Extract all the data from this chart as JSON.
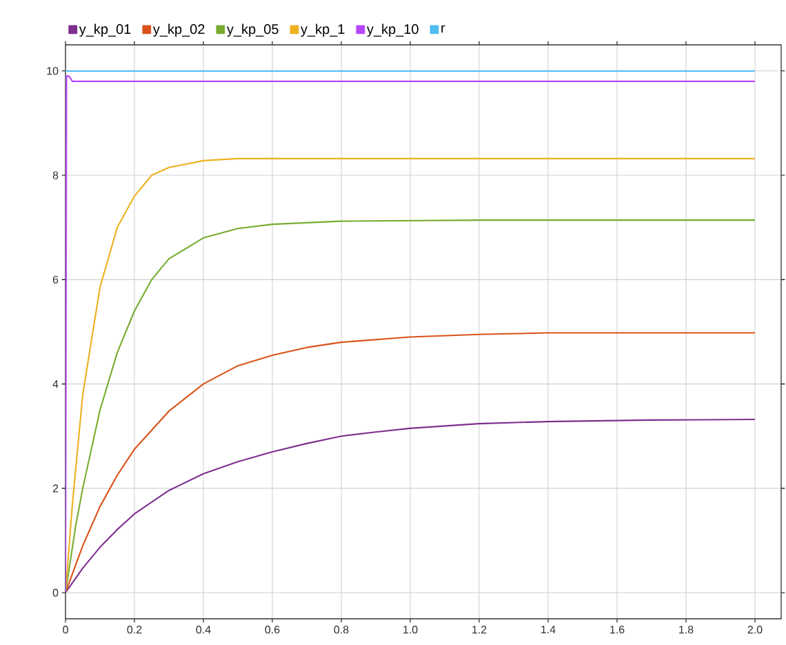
{
  "chart_data": {
    "type": "line",
    "xlim": [
      0,
      2.076
    ],
    "ylim": [
      -0.5,
      10.5
    ],
    "xticks": [
      0,
      0.2,
      0.4,
      0.6,
      0.8,
      {
        "value": 1,
        "label": "1.0"
      },
      1.2,
      1.4,
      1.6,
      1.8,
      {
        "value": 2,
        "label": "2.0"
      }
    ],
    "yticks": [
      0,
      2,
      4,
      6,
      8,
      10
    ],
    "grid": true,
    "legend": "top",
    "marker": "none",
    "line_style": "solid",
    "series": [
      {
        "name": "y_kp_01",
        "color": "#7e2f8e",
        "x": [
          0,
          0.05,
          0.1,
          0.15,
          0.2,
          0.3,
          0.4,
          0.5,
          0.6,
          0.7,
          0.8,
          0.9,
          1.0,
          1.2,
          1.4,
          1.7,
          2.0
        ],
        "values": [
          0,
          0.47,
          0.87,
          1.21,
          1.51,
          1.96,
          2.28,
          2.51,
          2.7,
          2.86,
          3.0,
          3.08,
          3.15,
          3.24,
          3.28,
          3.31,
          3.32
        ]
      },
      {
        "name": "y_kp_02",
        "color": "#d95319",
        "x": [
          0,
          0.05,
          0.1,
          0.15,
          0.2,
          0.3,
          0.4,
          0.5,
          0.6,
          0.7,
          0.8,
          1.0,
          1.2,
          1.4,
          2.0
        ],
        "values": [
          0,
          0.9,
          1.65,
          2.25,
          2.75,
          3.48,
          4.0,
          4.35,
          4.55,
          4.7,
          4.8,
          4.9,
          4.95,
          4.98,
          4.98
        ]
      },
      {
        "name": "y_kp_05",
        "color": "#77ac30",
        "x": [
          0,
          0.03,
          0.05,
          0.1,
          0.15,
          0.2,
          0.25,
          0.3,
          0.4,
          0.5,
          0.6,
          0.8,
          1.2,
          2.0
        ],
        "values": [
          0,
          1.3,
          2.0,
          3.5,
          4.6,
          5.4,
          6.0,
          6.4,
          6.8,
          6.98,
          7.06,
          7.12,
          7.14,
          7.14
        ]
      },
      {
        "name": "y_kp_1",
        "color": "#edb120",
        "x": [
          0,
          0.02,
          0.05,
          0.1,
          0.15,
          0.2,
          0.25,
          0.3,
          0.4,
          0.5,
          2.0
        ],
        "values": [
          0,
          1.7,
          3.8,
          5.85,
          7.0,
          7.6,
          8.0,
          8.15,
          8.28,
          8.32,
          8.32
        ]
      },
      {
        "name": "y_kp_10",
        "color": "#b746ff",
        "x": [
          0,
          0.003,
          0.01,
          0.02,
          2.0
        ],
        "values": [
          0,
          9.9,
          9.9,
          9.8,
          9.8
        ]
      },
      {
        "name": "r",
        "color": "#4dbeee",
        "x": [
          0,
          2.0
        ],
        "values": [
          10,
          10
        ]
      }
    ]
  }
}
